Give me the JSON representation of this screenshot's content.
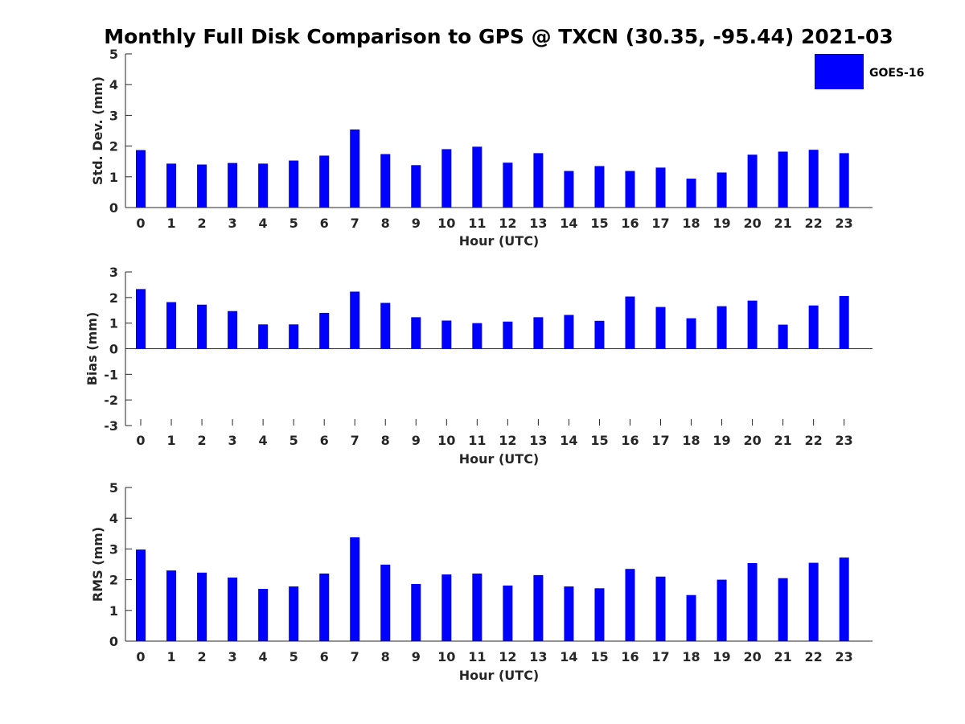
{
  "title": "Monthly Full Disk Comparison to GPS @ TXCN (30.35, -95.44) 2021-03",
  "legend": {
    "label": "GOES-16",
    "placement": "top-right",
    "color": "#0000ff"
  },
  "chart_data": [
    {
      "type": "bar",
      "xlabel": "Hour (UTC)",
      "ylabel": "Std. Dev. (mm)",
      "ylim": [
        0,
        5
      ],
      "yticks": [
        "0",
        "1",
        "2",
        "3",
        "4",
        "5"
      ],
      "categories": [
        "0",
        "1",
        "2",
        "3",
        "4",
        "5",
        "6",
        "7",
        "8",
        "9",
        "10",
        "11",
        "12",
        "13",
        "14",
        "15",
        "16",
        "17",
        "18",
        "19",
        "20",
        "21",
        "22",
        "23"
      ],
      "series": [
        {
          "name": "GOES-16",
          "color": "#0000ff",
          "values": [
            1.87,
            1.43,
            1.4,
            1.45,
            1.43,
            1.53,
            1.69,
            2.54,
            1.74,
            1.38,
            1.9,
            1.98,
            1.46,
            1.77,
            1.19,
            1.35,
            1.19,
            1.3,
            0.94,
            1.14,
            1.72,
            1.82,
            1.88,
            1.77
          ]
        }
      ]
    },
    {
      "type": "bar",
      "xlabel": "Hour (UTC)",
      "ylabel": "Bias (mm)",
      "ylim": [
        -3,
        3
      ],
      "yticks": [
        "-3",
        "-2",
        "-1",
        "0",
        "1",
        "2",
        "3"
      ],
      "categories": [
        "0",
        "1",
        "2",
        "3",
        "4",
        "5",
        "6",
        "7",
        "8",
        "9",
        "10",
        "11",
        "12",
        "13",
        "14",
        "15",
        "16",
        "17",
        "18",
        "19",
        "20",
        "21",
        "22",
        "23"
      ],
      "series": [
        {
          "name": "GOES-16",
          "color": "#0000ff",
          "values": [
            2.33,
            1.82,
            1.72,
            1.47,
            0.95,
            0.95,
            1.4,
            2.23,
            1.79,
            1.23,
            1.1,
            1.0,
            1.06,
            1.23,
            1.32,
            1.09,
            2.04,
            1.63,
            1.19,
            1.66,
            1.88,
            0.94,
            1.69,
            2.06
          ]
        }
      ]
    },
    {
      "type": "bar",
      "xlabel": "Hour (UTC)",
      "ylabel": "RMS (mm)",
      "ylim": [
        0,
        5
      ],
      "yticks": [
        "0",
        "1",
        "2",
        "3",
        "4",
        "5"
      ],
      "categories": [
        "0",
        "1",
        "2",
        "3",
        "4",
        "5",
        "6",
        "7",
        "8",
        "9",
        "10",
        "11",
        "12",
        "13",
        "14",
        "15",
        "16",
        "17",
        "18",
        "19",
        "20",
        "21",
        "22",
        "23"
      ],
      "series": [
        {
          "name": "GOES-16",
          "color": "#0000ff",
          "values": [
            2.98,
            2.3,
            2.23,
            2.07,
            1.7,
            1.78,
            2.2,
            3.38,
            2.49,
            1.86,
            2.17,
            2.2,
            1.81,
            2.15,
            1.78,
            1.72,
            2.35,
            2.1,
            1.5,
            2.0,
            2.54,
            2.05,
            2.55,
            2.72
          ]
        }
      ]
    }
  ]
}
